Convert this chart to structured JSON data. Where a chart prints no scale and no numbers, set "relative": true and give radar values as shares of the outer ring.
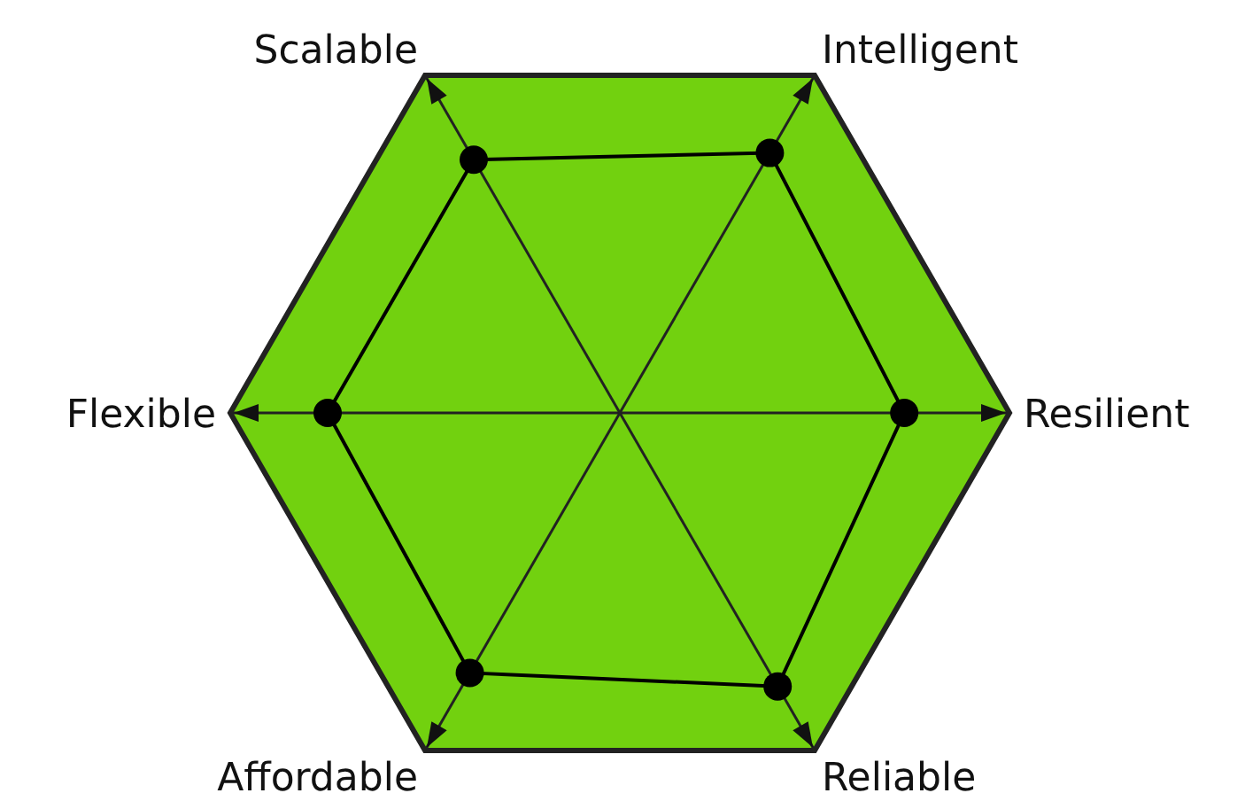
{
  "chart_data": {
    "type": "radar",
    "relative": true,
    "categories": [
      "Intelligent",
      "Resilient",
      "Reliable",
      "Affordable",
      "Flexible",
      "Scalable"
    ],
    "series": [
      {
        "color": "#000000",
        "values": [
          0.77,
          0.73,
          0.81,
          0.77,
          0.75,
          0.75
        ]
      }
    ],
    "grid": true,
    "marker": "circle"
  }
}
